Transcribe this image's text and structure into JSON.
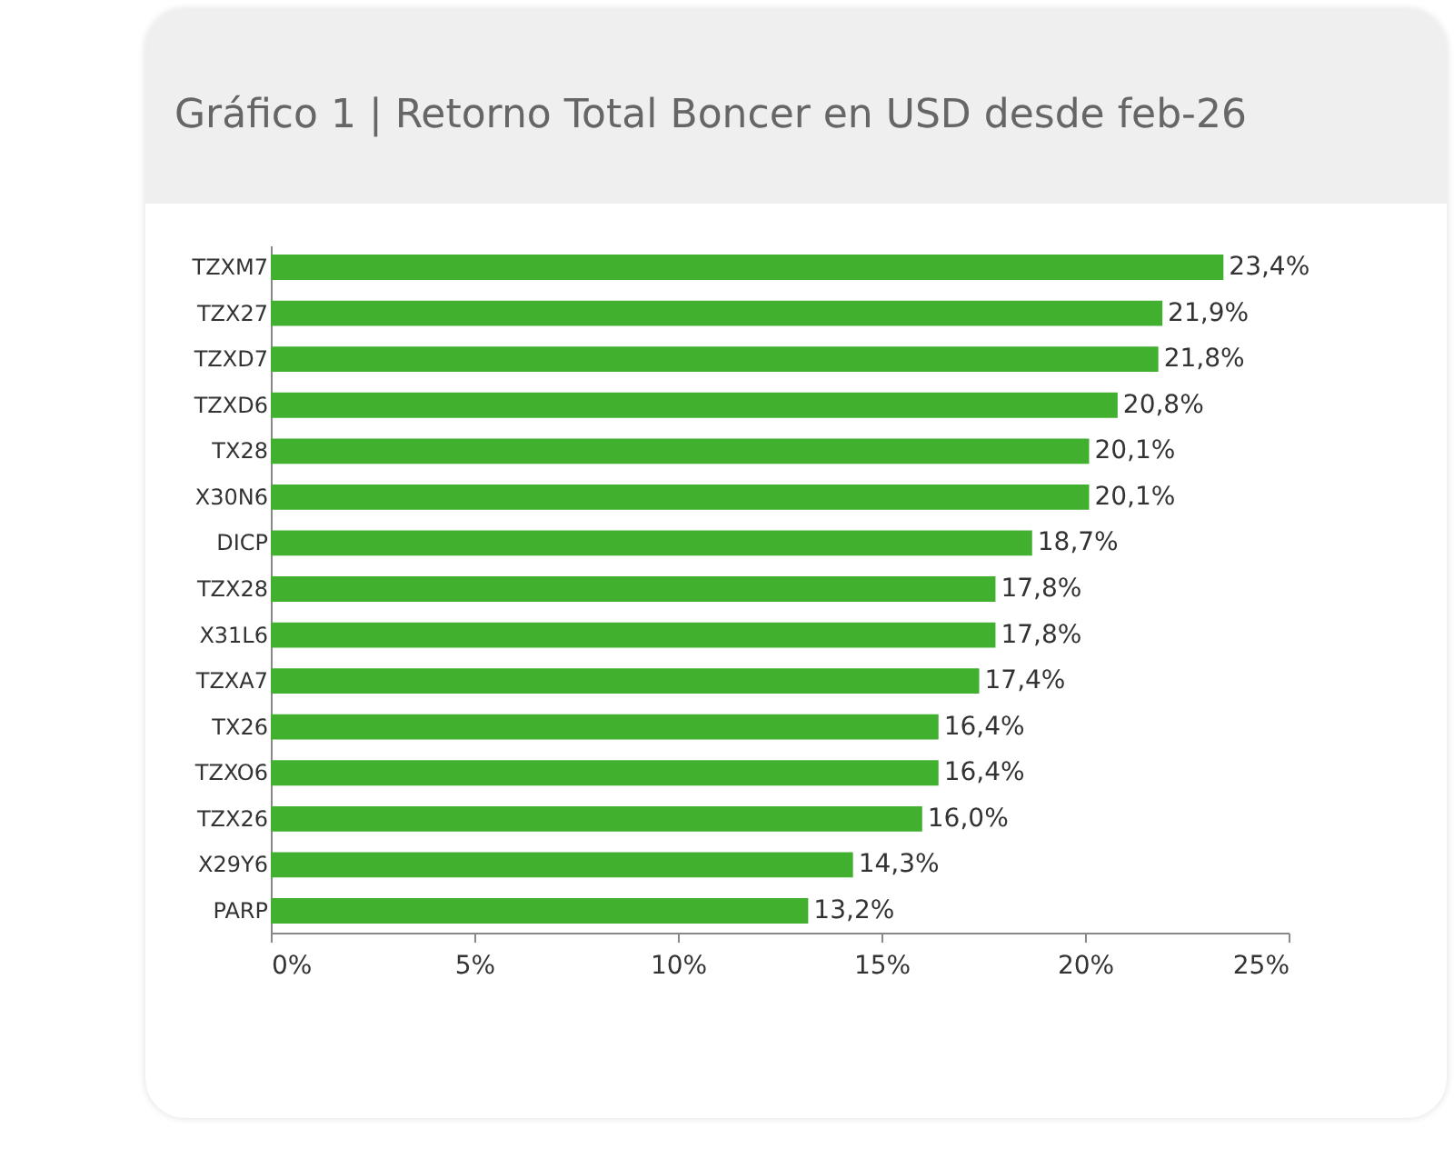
{
  "chart_data": {
    "type": "bar",
    "orientation": "horizontal",
    "title": "Gráfico 1 | Retorno Total Boncer en USD desde feb-26",
    "categories": [
      "TZXM7",
      "TZX27",
      "TZXD7",
      "TZXD6",
      "TX28",
      "X30N6",
      "DICP",
      "TZX28",
      "X31L6",
      "TZXA7",
      "TX26",
      "TZXO6",
      "TZX26",
      "X29Y6",
      "PARP"
    ],
    "values": [
      23.4,
      21.9,
      21.8,
      20.8,
      20.1,
      20.1,
      18.7,
      17.8,
      17.8,
      17.4,
      16.4,
      16.4,
      16.0,
      14.3,
      13.2
    ],
    "value_labels": [
      "23,4%",
      "21,9%",
      "21,8%",
      "20,8%",
      "20,1%",
      "20,1%",
      "18,7%",
      "17,8%",
      "17,8%",
      "17,4%",
      "16,4%",
      "16,4%",
      "16,0%",
      "14,3%",
      "13,2%"
    ],
    "color": "#41b02f",
    "xlim": [
      0,
      25
    ],
    "xticks": [
      {
        "value": 0,
        "label": "0%"
      },
      {
        "value": 5,
        "label": "5%"
      },
      {
        "value": 10,
        "label": "10%"
      },
      {
        "value": 15,
        "label": "15%"
      },
      {
        "value": 20,
        "label": "20%"
      },
      {
        "value": 25,
        "label": "25%"
      }
    ],
    "grid": false
  }
}
